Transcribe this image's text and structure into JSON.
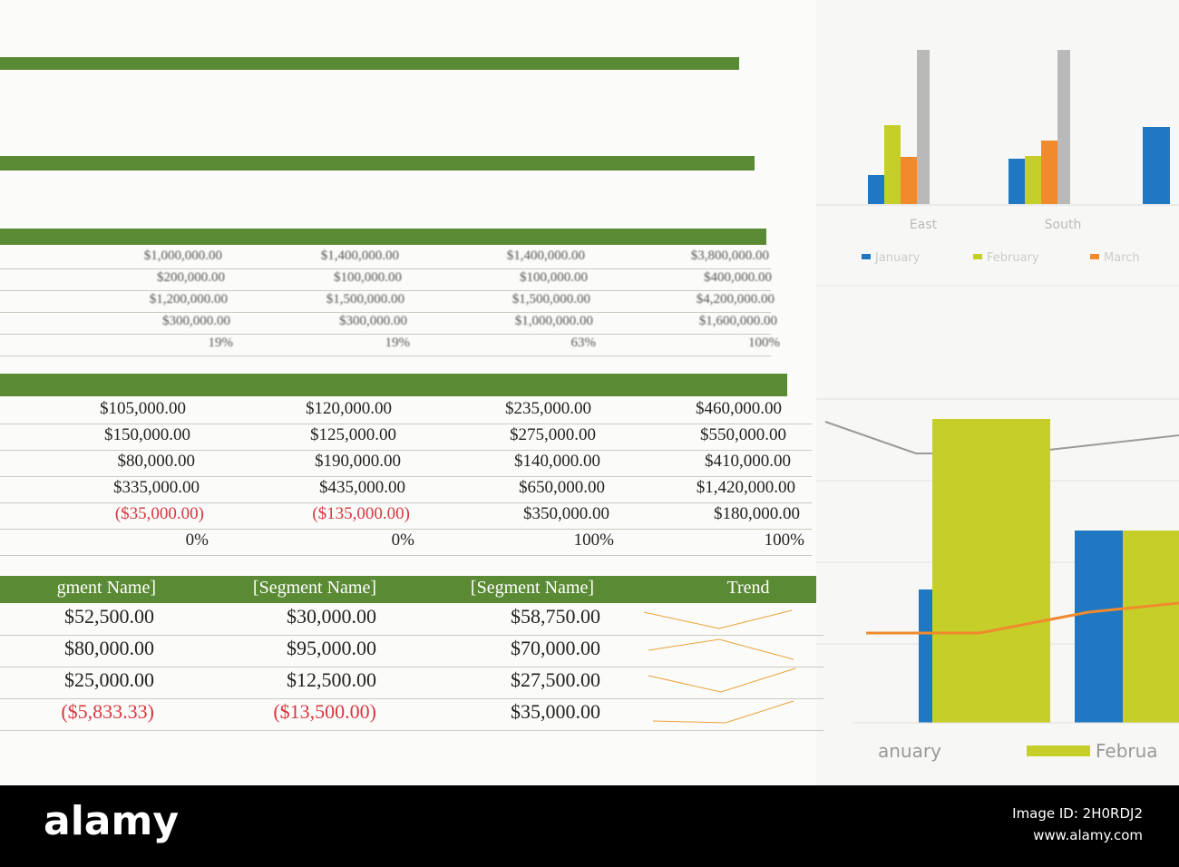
{
  "table_top": {
    "rows": [
      [
        "$1,000,000.00",
        "$1,400,000.00",
        "$1,400,000.00",
        "$3,800,000.00"
      ],
      [
        "$200,000.00",
        "$100,000.00",
        "$100,000.00",
        "$400,000.00"
      ],
      [
        "$1,200,000.00",
        "$1,500,000.00",
        "$1,500,000.00",
        "$4,200,000.00"
      ],
      [
        "$300,000.00",
        "$300,000.00",
        "$1,000,000.00",
        "$1,600,000.00"
      ],
      [
        "19%",
        "19%",
        "63%",
        "100%"
      ]
    ]
  },
  "table_mid": {
    "rows": [
      [
        "$105,000.00",
        "$120,000.00",
        "$235,000.00",
        "$460,000.00"
      ],
      [
        "$150,000.00",
        "$125,000.00",
        "$275,000.00",
        "$550,000.00"
      ],
      [
        "$80,000.00",
        "$190,000.00",
        "$140,000.00",
        "$410,000.00"
      ],
      [
        "$335,000.00",
        "$435,000.00",
        "$650,000.00",
        "$1,420,000.00"
      ],
      [
        "($35,000.00)",
        "($135,000.00)",
        "$350,000.00",
        "$180,000.00"
      ],
      [
        "0%",
        "0%",
        "100%",
        "100%"
      ]
    ]
  },
  "table_bottom": {
    "header": [
      "gment Name]",
      "[Segment Name]",
      "[Segment Name]",
      "Trend"
    ],
    "rows": [
      [
        "$52,500.00",
        "$30,000.00",
        "$58,750.00"
      ],
      [
        "$80,000.00",
        "$95,000.00",
        "$70,000.00"
      ],
      [
        "$25,000.00",
        "$12,500.00",
        "$27,500.00"
      ],
      [
        "($5,833.33)",
        "($13,500.00)",
        "$35,000.00"
      ]
    ]
  },
  "chart_top": {
    "x_labels": [
      "East",
      "South"
    ],
    "legend": [
      "January",
      "February",
      "March"
    ]
  },
  "chart_bottom": {
    "legend": [
      "anuary",
      "Februa"
    ]
  },
  "footer": {
    "brand": "alamy",
    "image_id": "Image ID: 2H0RDJ2",
    "url": "www.alamy.com"
  }
}
